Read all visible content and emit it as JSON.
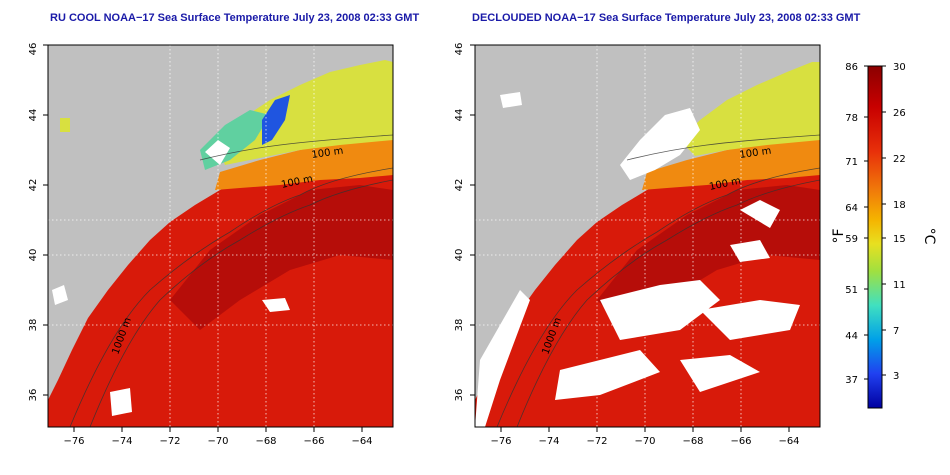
{
  "maps": [
    {
      "title": "RU COOL NOAA−17 Sea Surface Temperature July 23, 2008 02:33 GMT",
      "variant": "cool"
    },
    {
      "title": "DECLOUDED NOAA−17 Sea Surface Temperature July 23, 2008 02:33 GMT",
      "variant": "declouded"
    }
  ],
  "lon_ticks": [
    "−76",
    "−74",
    "−72",
    "−70",
    "−68",
    "−66",
    "−64"
  ],
  "lat_ticks": [
    "36",
    "38",
    "40",
    "42",
    "44",
    "46"
  ],
  "lon_range": [
    -77,
    -63
  ],
  "lat_range": [
    35,
    46
  ],
  "contour_labels": [
    "100 m",
    "100 m",
    "1000 m"
  ],
  "colorbar": {
    "f_ticks": [
      "86",
      "78",
      "71",
      "64",
      "59",
      "51",
      "44",
      "37"
    ],
    "c_ticks": [
      "30",
      "26",
      "22",
      "18",
      "15",
      "11",
      "7",
      "3"
    ],
    "f_unit": "°F",
    "c_unit": "°C",
    "stops": [
      "#8b0000",
      "#c80000",
      "#e8300a",
      "#f0780a",
      "#f5b400",
      "#e8e020",
      "#a0e040",
      "#40e0c0",
      "#00a0e8",
      "#2040f0",
      "#0000a0"
    ]
  },
  "colors": {
    "land": "#c0c0c0",
    "cloud": "#ffffff",
    "warm_sst": "#d81a0a",
    "deep_sst": "#a80808",
    "mid_sst": "#f08a10",
    "cool_sst": "#d8e040",
    "title": "#1a1aa8"
  }
}
